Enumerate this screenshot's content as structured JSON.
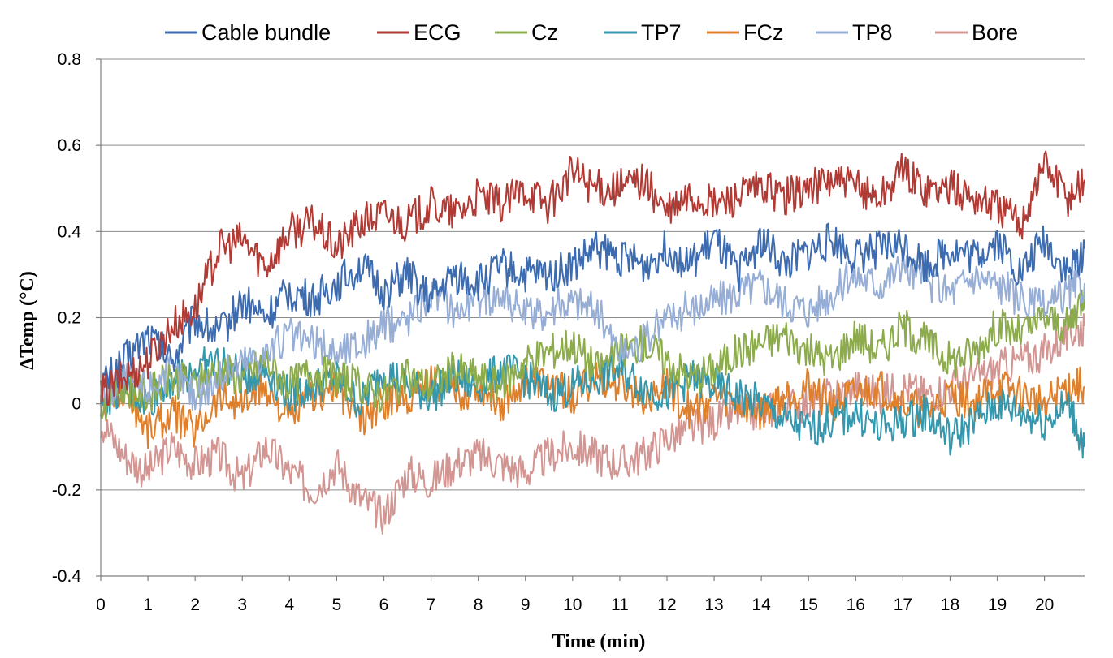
{
  "chart_data": {
    "type": "line",
    "title": "",
    "xlabel": "Time (min)",
    "ylabel": "ΔTemp (°C)",
    "xlim": [
      0,
      20.85
    ],
    "ylim": [
      -0.4,
      0.8
    ],
    "x_ticks": [
      0,
      1,
      2,
      3,
      4,
      5,
      6,
      7,
      8,
      9,
      10,
      11,
      12,
      13,
      14,
      15,
      16,
      17,
      18,
      19,
      20
    ],
    "x_tick_labels": [
      "0",
      "1",
      "2",
      "3",
      "4",
      "5",
      "6",
      "7",
      "8",
      "9",
      "10",
      "11",
      "12",
      "13",
      "14",
      "15",
      "16",
      "17",
      "18",
      "19",
      "20"
    ],
    "y_ticks": [
      -0.4,
      -0.2,
      0,
      0.2,
      0.4,
      0.6,
      0.8
    ],
    "y_tick_labels": [
      "-0.4",
      "-0.2",
      "0",
      "0.2",
      "0.4",
      "0.6",
      "0.8"
    ],
    "grid": "horizontal",
    "legend_position": "top",
    "series": [
      {
        "name": "Cable bundle",
        "color": "#3c6bb0",
        "x": [
          0,
          0.5,
          1,
          1.5,
          2,
          2.5,
          3,
          3.5,
          4,
          4.5,
          5,
          5.5,
          6,
          6.5,
          7,
          7.5,
          8,
          8.5,
          9,
          9.5,
          10,
          10.5,
          11,
          11.5,
          12,
          12.5,
          13,
          13.5,
          14,
          14.5,
          15,
          15.5,
          16,
          16.5,
          17,
          17.5,
          18,
          18.5,
          19,
          19.5,
          20,
          20.5,
          20.85
        ],
        "y": [
          0.04,
          0.1,
          0.16,
          0.1,
          0.2,
          0.16,
          0.24,
          0.2,
          0.26,
          0.24,
          0.28,
          0.32,
          0.26,
          0.3,
          0.24,
          0.3,
          0.28,
          0.32,
          0.3,
          0.3,
          0.32,
          0.36,
          0.34,
          0.32,
          0.36,
          0.32,
          0.38,
          0.3,
          0.38,
          0.32,
          0.35,
          0.38,
          0.34,
          0.36,
          0.37,
          0.32,
          0.36,
          0.34,
          0.38,
          0.3,
          0.38,
          0.3,
          0.36
        ]
      },
      {
        "name": "ECG",
        "color": "#b23a34",
        "x": [
          0,
          0.5,
          1,
          1.5,
          2,
          2.5,
          3,
          3.5,
          4,
          4.5,
          5,
          5.5,
          6,
          6.5,
          7,
          7.5,
          8,
          8.5,
          9,
          9.5,
          10,
          10.5,
          11,
          11.5,
          12,
          12.5,
          13,
          13.5,
          14,
          14.5,
          15,
          15.5,
          16,
          16.5,
          17,
          17.5,
          18,
          18.5,
          19,
          19.5,
          20,
          20.5,
          20.85
        ],
        "y": [
          0.02,
          0.06,
          0.1,
          0.18,
          0.22,
          0.36,
          0.38,
          0.32,
          0.4,
          0.42,
          0.36,
          0.42,
          0.44,
          0.42,
          0.46,
          0.44,
          0.48,
          0.46,
          0.5,
          0.46,
          0.54,
          0.5,
          0.5,
          0.52,
          0.44,
          0.48,
          0.46,
          0.48,
          0.5,
          0.48,
          0.5,
          0.52,
          0.5,
          0.48,
          0.54,
          0.5,
          0.5,
          0.48,
          0.46,
          0.42,
          0.56,
          0.48,
          0.52
        ]
      },
      {
        "name": "Cz",
        "color": "#8cab4b",
        "x": [
          0,
          0.5,
          1,
          1.5,
          2,
          2.5,
          3,
          3.5,
          4,
          4.5,
          5,
          5.5,
          6,
          6.5,
          7,
          7.5,
          8,
          8.5,
          9,
          9.5,
          10,
          10.5,
          11,
          11.5,
          12,
          12.5,
          13,
          13.5,
          14,
          14.5,
          15,
          15.5,
          16,
          16.5,
          17,
          17.5,
          18,
          18.5,
          19,
          19.5,
          20,
          20.5,
          20.85
        ],
        "y": [
          0,
          0.04,
          0.02,
          0.06,
          0.04,
          0.08,
          0.06,
          0.1,
          0.04,
          0.08,
          0.06,
          0.04,
          0.02,
          0.06,
          0.04,
          0.08,
          0.06,
          0.04,
          0.1,
          0.12,
          0.14,
          0.08,
          0.12,
          0.14,
          0.1,
          0.06,
          0.08,
          0.12,
          0.14,
          0.16,
          0.12,
          0.1,
          0.16,
          0.12,
          0.18,
          0.14,
          0.1,
          0.12,
          0.18,
          0.16,
          0.2,
          0.18,
          0.26
        ]
      },
      {
        "name": "TP7",
        "color": "#3398ad",
        "x": [
          0,
          0.5,
          1,
          1.5,
          2,
          2.5,
          3,
          3.5,
          4,
          4.5,
          5,
          5.5,
          6,
          6.5,
          7,
          7.5,
          8,
          8.5,
          9,
          9.5,
          10,
          10.5,
          11,
          11.5,
          12,
          12.5,
          13,
          13.5,
          14,
          14.5,
          15,
          15.5,
          16,
          16.5,
          17,
          17.5,
          18,
          18.5,
          19,
          19.5,
          20,
          20.5,
          20.85
        ],
        "y": [
          0,
          0.04,
          0,
          0.06,
          0.08,
          0.1,
          0.06,
          0.08,
          0.02,
          0.04,
          0.06,
          0,
          0.08,
          0.04,
          0.02,
          0.06,
          0.04,
          0.08,
          0.06,
          0.02,
          0.04,
          0.06,
          0.08,
          0.04,
          0.02,
          0.06,
          0.04,
          0.02,
          0,
          -0.04,
          -0.06,
          -0.04,
          -0.02,
          -0.06,
          -0.04,
          -0.02,
          -0.08,
          -0.04,
          0,
          -0.02,
          -0.04,
          0,
          -0.1
        ]
      },
      {
        "name": "FCz",
        "color": "#e07f2a",
        "x": [
          0,
          0.5,
          1,
          1.5,
          2,
          2.5,
          3,
          3.5,
          4,
          4.5,
          5,
          5.5,
          6,
          6.5,
          7,
          7.5,
          8,
          8.5,
          9,
          9.5,
          10,
          10.5,
          11,
          11.5,
          12,
          12.5,
          13,
          13.5,
          14,
          14.5,
          15,
          15.5,
          16,
          16.5,
          17,
          17.5,
          18,
          18.5,
          19,
          19.5,
          20,
          20.5,
          20.85
        ],
        "y": [
          -0.02,
          0.04,
          -0.06,
          -0.02,
          -0.06,
          0.02,
          0,
          0.04,
          -0.04,
          0.02,
          0.04,
          -0.04,
          0,
          0.02,
          0.06,
          0.02,
          0.04,
          0,
          0.06,
          0.04,
          0.02,
          0.06,
          0.04,
          0.02,
          0.04,
          -0.02,
          0.02,
          0,
          -0.02,
          0.02,
          0.04,
          0,
          0.02,
          0.04,
          0,
          -0.02,
          0.02,
          0,
          0.04,
          0.02,
          0,
          0.04,
          0.04
        ]
      },
      {
        "name": "TP8",
        "color": "#96aed6",
        "x": [
          0,
          0.5,
          1,
          1.5,
          2,
          2.5,
          3,
          3.5,
          4,
          4.5,
          5,
          5.5,
          6,
          6.5,
          7,
          7.5,
          8,
          8.5,
          9,
          9.5,
          10,
          10.5,
          11,
          11.5,
          12,
          12.5,
          13,
          13.5,
          14,
          14.5,
          15,
          15.5,
          16,
          16.5,
          17,
          17.5,
          18,
          18.5,
          19,
          19.5,
          20,
          20.5,
          20.85
        ],
        "y": [
          0.02,
          0.06,
          0.04,
          0.08,
          0.02,
          0.06,
          0.1,
          0.12,
          0.16,
          0.14,
          0.12,
          0.14,
          0.18,
          0.2,
          0.26,
          0.22,
          0.24,
          0.26,
          0.2,
          0.22,
          0.24,
          0.22,
          0.12,
          0.14,
          0.2,
          0.22,
          0.24,
          0.26,
          0.28,
          0.24,
          0.22,
          0.26,
          0.3,
          0.28,
          0.32,
          0.28,
          0.26,
          0.3,
          0.28,
          0.24,
          0.22,
          0.26,
          0.28
        ]
      },
      {
        "name": "Bore",
        "color": "#d39592",
        "x": [
          0,
          0.5,
          1,
          1.5,
          2,
          2.5,
          3,
          3.5,
          4,
          4.5,
          5,
          5.5,
          6,
          6.5,
          7,
          7.5,
          8,
          8.5,
          9,
          9.5,
          10,
          10.5,
          11,
          11.5,
          12,
          12.5,
          13,
          13.5,
          14,
          14.5,
          15,
          15.5,
          16,
          16.5,
          17,
          17.5,
          18,
          18.5,
          19,
          19.5,
          20,
          20.5,
          20.85
        ],
        "y": [
          -0.04,
          -0.12,
          -0.16,
          -0.1,
          -0.14,
          -0.12,
          -0.18,
          -0.1,
          -0.16,
          -0.2,
          -0.14,
          -0.22,
          -0.26,
          -0.16,
          -0.18,
          -0.14,
          -0.12,
          -0.14,
          -0.16,
          -0.12,
          -0.1,
          -0.12,
          -0.14,
          -0.12,
          -0.08,
          -0.06,
          -0.04,
          -0.02,
          -0.02,
          0,
          0,
          0.02,
          0.04,
          0.02,
          0.04,
          0.02,
          0.04,
          0.06,
          0.08,
          0.1,
          0.12,
          0.16,
          0.18
        ]
      }
    ]
  }
}
